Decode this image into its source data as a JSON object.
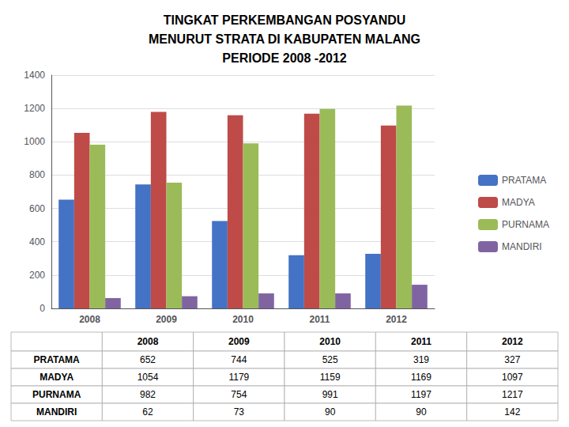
{
  "chart_data": {
    "type": "bar",
    "title": "TINGKAT PERKEMBANGAN POSYANDU\nMENURUT STRATA DI KABUPATEN MALANG\nPERIODE 2008 -2012",
    "categories": [
      "2008",
      "2009",
      "2010",
      "2011",
      "2012"
    ],
    "series": [
      {
        "name": "PRATAMA",
        "color": "#4472C4",
        "values": [
          652,
          744,
          525,
          319,
          327
        ]
      },
      {
        "name": "MADYA",
        "color": "#BE4B48",
        "values": [
          1054,
          1179,
          1159,
          1169,
          1097
        ]
      },
      {
        "name": "PURNAMA",
        "color": "#9BBB59",
        "values": [
          982,
          754,
          991,
          1197,
          1217
        ]
      },
      {
        "name": "MANDIRI",
        "color": "#8064A2",
        "values": [
          62,
          73,
          90,
          90,
          142
        ]
      }
    ],
    "ylim": [
      0,
      1400
    ],
    "yticks": [
      0,
      200,
      400,
      600,
      800,
      1000,
      1200,
      1400
    ],
    "grid": true,
    "legend": "right"
  }
}
